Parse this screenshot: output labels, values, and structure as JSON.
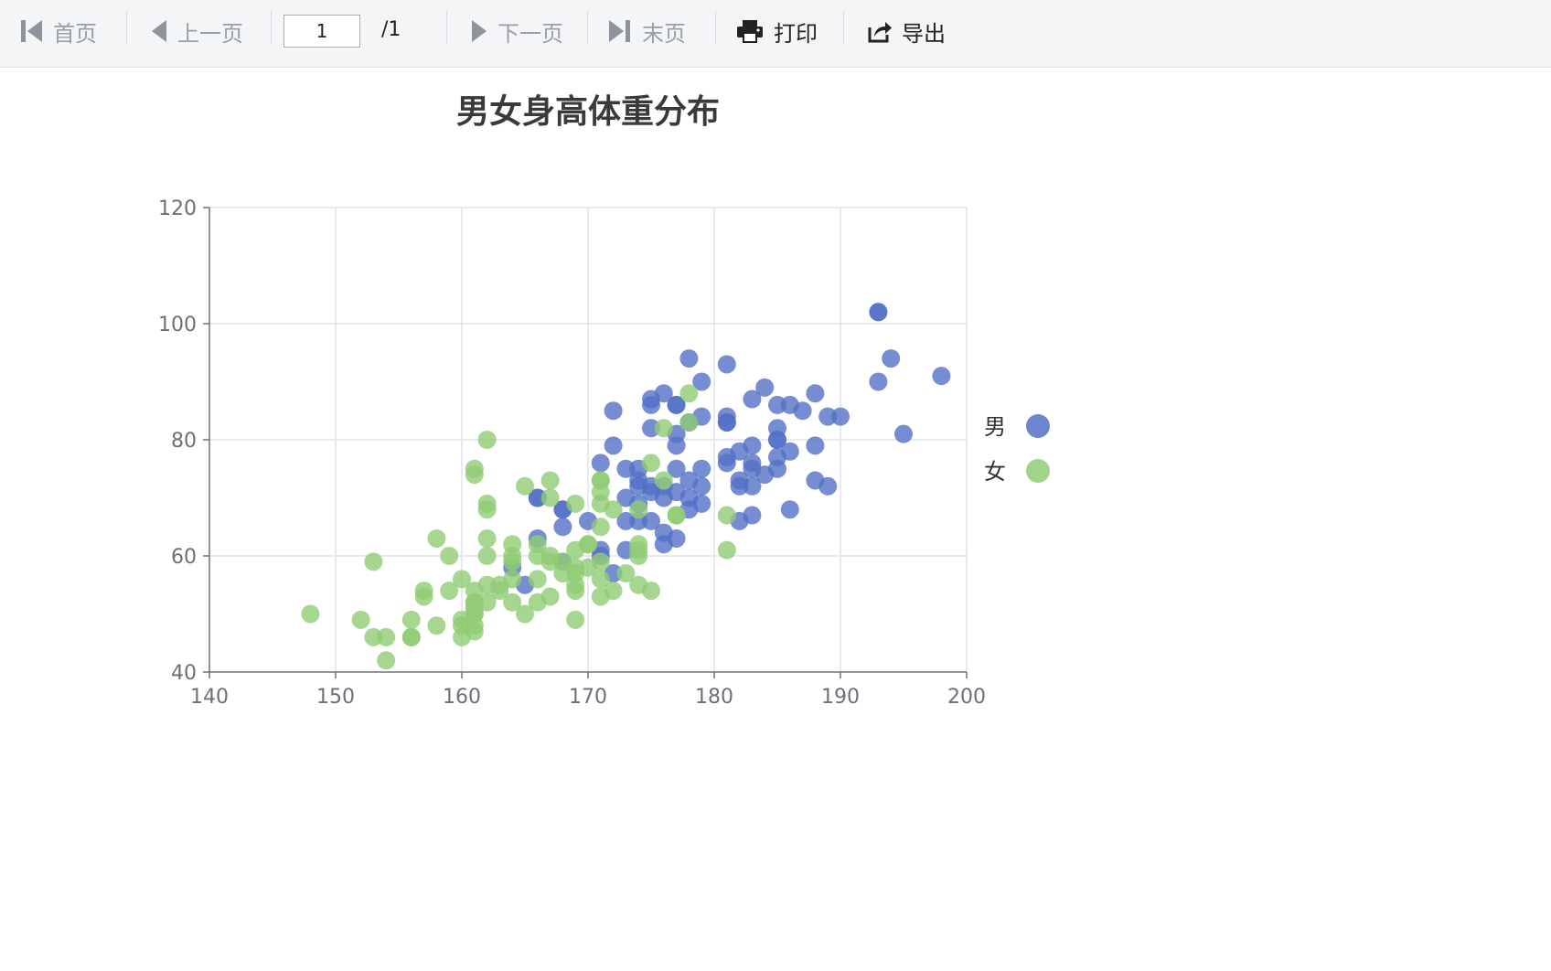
{
  "toolbar": {
    "first_label": "首页",
    "prev_label": "上一页",
    "page_value": "1",
    "page_total": "/1",
    "next_label": "下一页",
    "last_label": "末页",
    "print_label": "打印",
    "export_label": "导出"
  },
  "chart_data": {
    "type": "scatter",
    "title": "男女身高体重分布",
    "xlabel": "",
    "ylabel": "",
    "xlim": [
      140,
      200
    ],
    "ylim": [
      40,
      120
    ],
    "x_ticks": [
      140,
      150,
      160,
      170,
      180,
      190,
      200
    ],
    "y_ticks": [
      40,
      60,
      80,
      100,
      120
    ],
    "grid": true,
    "legend": "right",
    "series": [
      {
        "name": "男",
        "color": "#5470c6",
        "points": [
          [
            193,
            102
          ],
          [
            193,
            102
          ],
          [
            178,
            94
          ],
          [
            194,
            94
          ],
          [
            181,
            93
          ],
          [
            179,
            90
          ],
          [
            193,
            90
          ],
          [
            198,
            91
          ],
          [
            184,
            89
          ],
          [
            176,
            88
          ],
          [
            188,
            88
          ],
          [
            175,
            87
          ],
          [
            183,
            87
          ],
          [
            177,
            86
          ],
          [
            177,
            86
          ],
          [
            185,
            86
          ],
          [
            186,
            86
          ],
          [
            172,
            85
          ],
          [
            175,
            86
          ],
          [
            187,
            85
          ],
          [
            179,
            84
          ],
          [
            181,
            84
          ],
          [
            189,
            84
          ],
          [
            190,
            84
          ],
          [
            181,
            83
          ],
          [
            181,
            83
          ],
          [
            178,
            83
          ],
          [
            175,
            82
          ],
          [
            177,
            81
          ],
          [
            185,
            82
          ],
          [
            195,
            81
          ],
          [
            177,
            79
          ],
          [
            172,
            79
          ],
          [
            183,
            79
          ],
          [
            188,
            79
          ],
          [
            185,
            80
          ],
          [
            185,
            80
          ],
          [
            182,
            78
          ],
          [
            186,
            78
          ],
          [
            181,
            77
          ],
          [
            185,
            77
          ],
          [
            171,
            76
          ],
          [
            181,
            76
          ],
          [
            183,
            76
          ],
          [
            183,
            75
          ],
          [
            173,
            75
          ],
          [
            174,
            75
          ],
          [
            177,
            75
          ],
          [
            179,
            75
          ],
          [
            185,
            75
          ],
          [
            184,
            74
          ],
          [
            174,
            73
          ],
          [
            178,
            73
          ],
          [
            182,
            73
          ],
          [
            188,
            73
          ],
          [
            174,
            72
          ],
          [
            175,
            72
          ],
          [
            176,
            72
          ],
          [
            179,
            72
          ],
          [
            182,
            72
          ],
          [
            183,
            72
          ],
          [
            189,
            72
          ],
          [
            173,
            70
          ],
          [
            175,
            71
          ],
          [
            177,
            71
          ],
          [
            176,
            70
          ],
          [
            178,
            70
          ],
          [
            166,
            70
          ],
          [
            166,
            70
          ],
          [
            179,
            69
          ],
          [
            174,
            69
          ],
          [
            168,
            68
          ],
          [
            168,
            68
          ],
          [
            178,
            68
          ],
          [
            183,
            67
          ],
          [
            186,
            68
          ],
          [
            182,
            66
          ],
          [
            170,
            66
          ],
          [
            173,
            66
          ],
          [
            174,
            66
          ],
          [
            175,
            66
          ],
          [
            168,
            65
          ],
          [
            176,
            64
          ],
          [
            177,
            63
          ],
          [
            166,
            63
          ],
          [
            176,
            62
          ],
          [
            171,
            61
          ],
          [
            173,
            61
          ],
          [
            171,
            60
          ],
          [
            168,
            59
          ],
          [
            172,
            57
          ],
          [
            165,
            55
          ],
          [
            164,
            58
          ]
        ]
      },
      {
        "name": "女",
        "color": "#91cc75",
        "points": [
          [
            178,
            88
          ],
          [
            176,
            82
          ],
          [
            178,
            83
          ],
          [
            162,
            80
          ],
          [
            175,
            76
          ],
          [
            161,
            75
          ],
          [
            161,
            74
          ],
          [
            167,
            73
          ],
          [
            171,
            73
          ],
          [
            171,
            73
          ],
          [
            176,
            73
          ],
          [
            165,
            72
          ],
          [
            171,
            71
          ],
          [
            167,
            70
          ],
          [
            171,
            69
          ],
          [
            169,
            69
          ],
          [
            162,
            69
          ],
          [
            162,
            68
          ],
          [
            172,
            68
          ],
          [
            174,
            68
          ],
          [
            177,
            67
          ],
          [
            177,
            67
          ],
          [
            181,
            67
          ],
          [
            171,
            65
          ],
          [
            158,
            63
          ],
          [
            162,
            63
          ],
          [
            166,
            62
          ],
          [
            164,
            62
          ],
          [
            170,
            62
          ],
          [
            170,
            62
          ],
          [
            174,
            62
          ],
          [
            174,
            61
          ],
          [
            181,
            61
          ],
          [
            169,
            61
          ],
          [
            162,
            60
          ],
          [
            159,
            60
          ],
          [
            167,
            60
          ],
          [
            164,
            60
          ],
          [
            166,
            60
          ],
          [
            174,
            60
          ],
          [
            168,
            59
          ],
          [
            153,
            59
          ],
          [
            170,
            58
          ],
          [
            169,
            58
          ],
          [
            171,
            59
          ],
          [
            167,
            59
          ],
          [
            164,
            59
          ],
          [
            168,
            57
          ],
          [
            169,
            57
          ],
          [
            173,
            57
          ],
          [
            160,
            56
          ],
          [
            164,
            56
          ],
          [
            166,
            56
          ],
          [
            171,
            56
          ],
          [
            162,
            55
          ],
          [
            163,
            55
          ],
          [
            169,
            55
          ],
          [
            174,
            55
          ],
          [
            163,
            54
          ],
          [
            169,
            54
          ],
          [
            161,
            54
          ],
          [
            157,
            54
          ],
          [
            159,
            54
          ],
          [
            172,
            54
          ],
          [
            175,
            54
          ],
          [
            157,
            53
          ],
          [
            167,
            53
          ],
          [
            171,
            53
          ],
          [
            161,
            52
          ],
          [
            161,
            52
          ],
          [
            162,
            52
          ],
          [
            164,
            52
          ],
          [
            166,
            52
          ],
          [
            161,
            51
          ],
          [
            161,
            50
          ],
          [
            161,
            50
          ],
          [
            148,
            50
          ],
          [
            165,
            50
          ],
          [
            152,
            49
          ],
          [
            156,
            49
          ],
          [
            160,
            49
          ],
          [
            169,
            49
          ],
          [
            161,
            48
          ],
          [
            158,
            48
          ],
          [
            160,
            48
          ],
          [
            161,
            47
          ],
          [
            153,
            46
          ],
          [
            154,
            46
          ],
          [
            156,
            46
          ],
          [
            156,
            46
          ],
          [
            160,
            46
          ],
          [
            154,
            42
          ]
        ]
      }
    ]
  }
}
